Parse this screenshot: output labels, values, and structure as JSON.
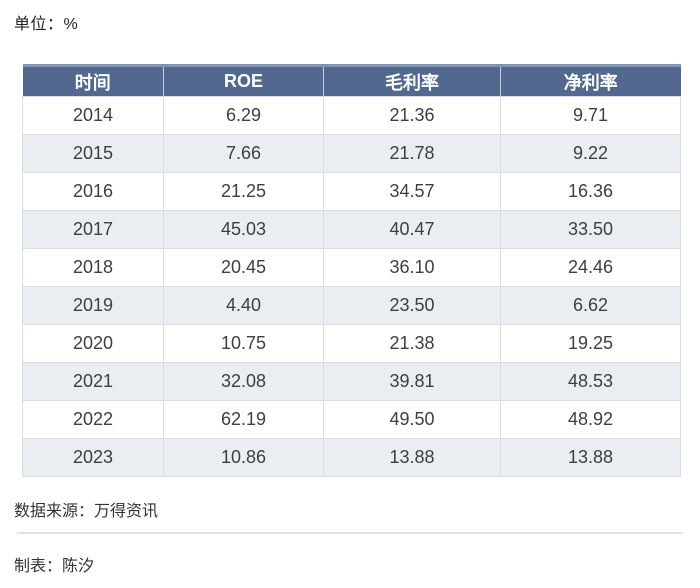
{
  "page": {
    "unit_label": "单位：%",
    "source_label": "数据来源：万得资讯",
    "credit_label": "制表：陈汐"
  },
  "chart_data": {
    "type": "table",
    "unit": "%",
    "columns": [
      "时间",
      "ROE",
      "毛利率",
      "净利率"
    ],
    "rows": [
      [
        "2014",
        "6.29",
        "21.36",
        "9.71"
      ],
      [
        "2015",
        "7.66",
        "21.78",
        "9.22"
      ],
      [
        "2016",
        "21.25",
        "34.57",
        "16.36"
      ],
      [
        "2017",
        "45.03",
        "40.47",
        "33.50"
      ],
      [
        "2018",
        "20.45",
        "36.10",
        "24.46"
      ],
      [
        "2019",
        "4.40",
        "23.50",
        "6.62"
      ],
      [
        "2020",
        "10.75",
        "21.38",
        "19.25"
      ],
      [
        "2021",
        "32.08",
        "39.81",
        "48.53"
      ],
      [
        "2022",
        "62.19",
        "49.50",
        "48.92"
      ],
      [
        "2023",
        "10.86",
        "13.88",
        "13.88"
      ]
    ],
    "source": "万得资讯",
    "author": "陈汐",
    "layout": {
      "striped": true,
      "header_align": "center",
      "cell_align": "center"
    }
  },
  "colors": {
    "header_bg": "#53688e",
    "header_text": "#ffffff",
    "header_top_edge": "#8294b1",
    "header_divider": "#c7d0dd",
    "stripe_bg": "#eaedf1",
    "row_bg": "#ffffff",
    "cell_border": "#d9dce0",
    "body_text": "#3c4043",
    "footer_divider": "#e3e3e3"
  }
}
